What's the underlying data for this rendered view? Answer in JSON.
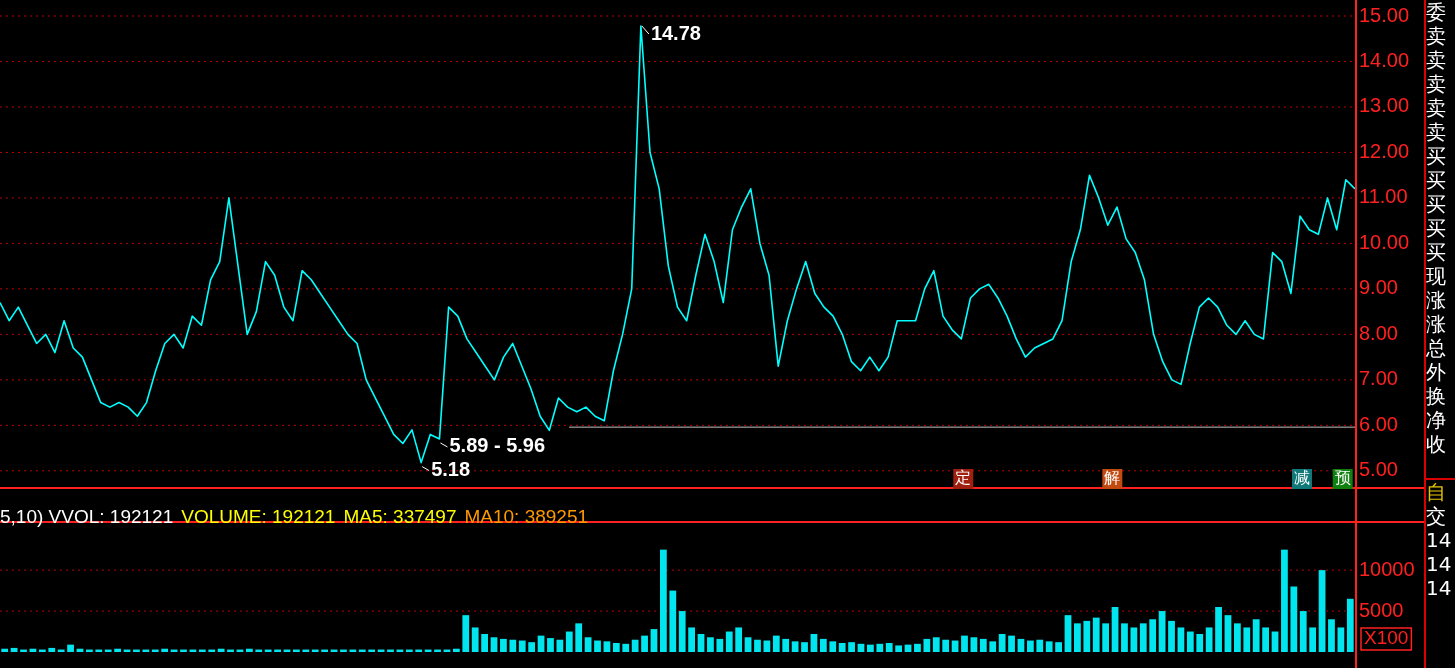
{
  "chart_data": [
    {
      "type": "line",
      "categories": [
        null,
        null,
        null,
        null,
        null,
        null,
        null,
        null,
        null,
        null,
        null,
        null,
        null,
        null,
        null,
        null,
        null,
        null,
        null,
        null,
        null,
        null,
        null,
        null,
        null,
        null,
        null,
        null,
        null,
        null,
        null,
        null,
        null,
        null,
        null,
        null,
        null,
        null,
        null,
        null,
        null,
        null,
        null,
        null,
        null,
        null,
        null,
        null,
        null,
        null,
        null,
        null,
        null,
        null,
        null,
        null,
        null,
        null,
        null,
        null,
        null,
        null,
        null,
        null,
        null,
        null,
        null,
        null,
        null,
        null,
        null,
        null,
        null,
        null,
        null,
        null,
        null,
        null,
        null,
        null,
        null,
        null,
        null,
        null,
        null,
        null,
        null,
        null,
        null,
        null,
        null,
        null,
        null,
        null,
        null,
        null,
        null,
        null,
        null,
        null,
        null,
        null,
        null,
        null,
        null,
        null,
        null,
        null,
        null,
        null,
        null,
        null,
        null,
        null,
        null,
        null,
        null,
        null,
        null,
        null,
        null,
        null,
        null,
        null,
        null,
        null,
        null,
        null,
        null,
        null,
        null,
        null,
        null,
        null,
        null,
        null,
        null,
        null,
        null,
        null,
        null,
        null,
        null,
        null,
        null,
        null,
        null,
        null,
        null
      ],
      "series": [
        {
          "color": "#00ffff",
          "values": [
            8.7,
            8.3,
            8.6,
            8.2,
            7.8,
            8.0,
            7.6,
            8.3,
            7.7,
            7.5,
            7.0,
            6.5,
            6.4,
            6.5,
            6.4,
            6.2,
            6.5,
            7.2,
            7.8,
            8.0,
            7.7,
            8.4,
            8.2,
            9.2,
            9.6,
            11.0,
            9.5,
            8.0,
            8.5,
            9.6,
            9.3,
            8.6,
            8.3,
            9.4,
            9.2,
            8.9,
            8.6,
            8.3,
            8.0,
            7.8,
            7.0,
            6.6,
            6.2,
            5.8,
            5.6,
            5.9,
            5.18,
            5.8,
            5.7,
            8.6,
            8.4,
            7.9,
            7.6,
            7.3,
            7.0,
            7.5,
            7.8,
            7.3,
            6.8,
            6.2,
            5.89,
            6.6,
            6.4,
            6.3,
            6.4,
            6.2,
            6.1,
            7.2,
            8.0,
            9.0,
            14.78,
            12.0,
            11.2,
            9.5,
            8.6,
            8.3,
            9.3,
            10.2,
            9.6,
            8.7,
            10.3,
            10.8,
            11.2,
            10.0,
            9.3,
            7.3,
            8.3,
            9.0,
            9.6,
            8.9,
            8.6,
            8.4,
            8.0,
            7.4,
            7.2,
            7.5,
            7.2,
            7.5,
            8.3,
            8.3,
            8.3,
            9.0,
            9.4,
            8.4,
            8.1,
            7.9,
            8.8,
            9.0,
            9.1,
            8.8,
            8.4,
            7.9,
            7.5,
            7.7,
            7.8,
            7.9,
            8.3,
            9.6,
            10.3,
            11.5,
            11.0,
            10.4,
            10.8,
            10.1,
            9.8,
            9.2,
            8.0,
            7.4,
            7.0,
            6.9,
            7.8,
            8.6,
            8.8,
            8.6,
            8.2,
            8.0,
            8.3,
            8.0,
            7.9,
            9.8,
            9.6,
            8.9,
            10.6,
            10.3,
            10.2,
            11.0,
            10.3,
            11.4,
            11.2
          ]
        }
      ],
      "ylim": [
        4.6,
        15
      ],
      "yticks": [
        {
          "value": 5,
          "label": "5.00"
        },
        {
          "value": 6,
          "label": "6.00"
        },
        {
          "value": 7,
          "label": "7.00"
        },
        {
          "value": 8,
          "label": "8.00"
        },
        {
          "value": 9,
          "label": "9.00"
        },
        {
          "value": 10,
          "label": "10.00"
        },
        {
          "value": 11,
          "label": "11.00"
        },
        {
          "value": 12,
          "label": "12.00"
        },
        {
          "value": 13,
          "label": "13.00"
        },
        {
          "value": 14,
          "label": "14.00"
        },
        {
          "value": 15,
          "label": "15.00"
        }
      ],
      "grid": "y",
      "tick_labels": "y",
      "ref_lines": [
        {
          "axis": "y",
          "value": 5.96,
          "color": "#c0c0c0"
        }
      ],
      "annotations": [
        "14.78",
        "5.18",
        "5.89 - 5.96",
        "定",
        "解",
        "减",
        "预"
      ]
    },
    {
      "type": "bar",
      "categories": [
        null,
        null,
        null,
        null,
        null,
        null,
        null,
        null,
        null,
        null,
        null,
        null,
        null,
        null,
        null,
        null,
        null,
        null,
        null,
        null,
        null,
        null,
        null,
        null,
        null,
        null,
        null,
        null,
        null,
        null,
        null,
        null,
        null,
        null,
        null,
        null,
        null,
        null,
        null,
        null,
        null,
        null,
        null,
        null,
        null,
        null,
        null,
        null,
        null,
        null,
        null,
        null,
        null,
        null,
        null,
        null,
        null,
        null,
        null,
        null,
        null,
        null,
        null,
        null,
        null,
        null,
        null,
        null,
        null,
        null,
        null,
        null,
        null,
        null,
        null,
        null,
        null,
        null,
        null,
        null,
        null,
        null,
        null,
        null,
        null,
        null,
        null,
        null,
        null,
        null,
        null,
        null,
        null,
        null,
        null,
        null,
        null,
        null,
        null,
        null,
        null,
        null,
        null,
        null,
        null,
        null,
        null,
        null,
        null,
        null,
        null,
        null,
        null,
        null,
        null,
        null,
        null,
        null,
        null,
        null,
        null,
        null,
        null,
        null,
        null,
        null,
        null,
        null,
        null,
        null,
        null,
        null,
        null,
        null,
        null,
        null,
        null,
        null,
        null,
        null,
        null,
        null,
        null,
        null
      ],
      "series": [
        {
          "color": "#00e5ee",
          "values": [
            400,
            500,
            300,
            400,
            300,
            500,
            300,
            900,
            400,
            300,
            300,
            300,
            400,
            300,
            300,
            300,
            300,
            400,
            300,
            300,
            300,
            300,
            300,
            400,
            300,
            300,
            400,
            300,
            300,
            300,
            300,
            300,
            300,
            300,
            300,
            300,
            300,
            300,
            300,
            300,
            300,
            300,
            300,
            300,
            300,
            300,
            300,
            300,
            400,
            4500,
            3000,
            2200,
            1800,
            1600,
            1500,
            1400,
            1200,
            2000,
            1700,
            1500,
            2500,
            3500,
            1800,
            1400,
            1300,
            1100,
            1000,
            1500,
            2000,
            2800,
            12500,
            7500,
            5000,
            3000,
            2200,
            1800,
            1600,
            2500,
            3000,
            1800,
            1500,
            1400,
            2000,
            1600,
            1300,
            1200,
            2200,
            1600,
            1300,
            1100,
            1200,
            1000,
            900,
            1000,
            1100,
            800,
            900,
            1000,
            1600,
            1800,
            1500,
            1400,
            2000,
            1800,
            1600,
            1300,
            2200,
            2000,
            1600,
            1400,
            1500,
            1300,
            1200,
            4500,
            3500,
            3800,
            4200,
            3500,
            5500,
            3500,
            3000,
            3500,
            4000,
            5000,
            3800,
            3000,
            2500,
            2200,
            3000,
            5500,
            4500,
            3500,
            3000,
            4000,
            3000,
            2500,
            12500,
            8000,
            5000,
            3000,
            10000,
            4000,
            3000,
            6500
          ]
        }
      ],
      "ylim": [
        0,
        16000
      ],
      "yticks": [
        5000,
        10000
      ],
      "grid": "y",
      "tick_labels": "y",
      "ylabel": "X100",
      "annotations": [
        "5,10) VVOL: 192121",
        "VOLUME: 192121",
        "MA5: 337497",
        "MA10: 389251"
      ]
    },
    {
      "type": "other",
      "annotations": [
        "委",
        "卖",
        "卖",
        "卖",
        "卖",
        "卖",
        "买",
        "买",
        "买",
        "买",
        "买",
        "现",
        "涨",
        "涨",
        "总",
        "外",
        "换",
        "净",
        "收",
        "自",
        "交",
        "14",
        "14",
        "14"
      ]
    }
  ]
}
